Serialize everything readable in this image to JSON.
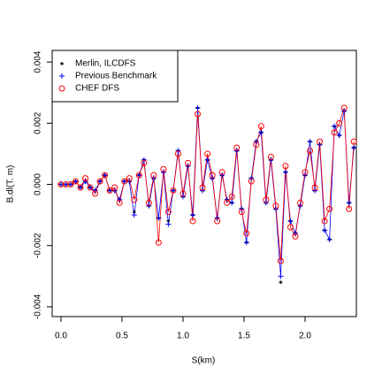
{
  "chart_data": {
    "type": "line",
    "xlabel": "S(km)",
    "ylabel": "B.dl(T. m)",
    "xlim": [
      -0.072,
      2.42
    ],
    "ylim": [
      -0.00432,
      0.00438
    ],
    "xticks": [
      {
        "value": 0,
        "label": "0.0"
      },
      {
        "value": 0.5,
        "label": "0.5"
      },
      {
        "value": 1,
        "label": "1.0"
      },
      {
        "value": 1.5,
        "label": "1.5"
      },
      {
        "value": 2,
        "label": "2.0"
      }
    ],
    "yticks": [
      {
        "value": -0.004,
        "label": "-0.004"
      },
      {
        "value": -0.002,
        "label": "-0.002"
      },
      {
        "value": 0,
        "label": "0.000"
      },
      {
        "value": 0.002,
        "label": "0.002"
      },
      {
        "value": 0.004,
        "label": "0.004"
      }
    ],
    "legend": "top-left",
    "x": [
      0,
      0.04,
      0.08,
      0.12,
      0.16,
      0.2,
      0.24,
      0.28,
      0.32,
      0.36,
      0.4,
      0.44,
      0.48,
      0.52,
      0.56,
      0.6,
      0.64,
      0.68,
      0.72,
      0.76,
      0.8,
      0.84,
      0.88,
      0.92,
      0.96,
      1.0,
      1.04,
      1.08,
      1.12,
      1.16,
      1.2,
      1.24,
      1.28,
      1.32,
      1.36,
      1.4,
      1.44,
      1.48,
      1.52,
      1.56,
      1.6,
      1.64,
      1.68,
      1.72,
      1.76,
      1.8,
      1.84,
      1.88,
      1.92,
      1.96,
      2.0,
      2.04,
      2.08,
      2.12,
      2.16,
      2.2,
      2.24,
      2.28,
      2.32,
      2.36,
      2.4
    ],
    "series": [
      {
        "name": "Merlin, ILCDFS",
        "color": "#000000",
        "marker": "star",
        "line": false,
        "values": [
          0,
          0,
          0,
          0.0001,
          -0.0001,
          0.0001,
          -0.0001,
          -0.0002,
          0.0001,
          0.0003,
          -0.0002,
          -0.0002,
          -0.0005,
          0.0001,
          0.0001,
          -0.0009,
          0.0003,
          0.0008,
          -0.0007,
          0.0002,
          -0.0011,
          0.0004,
          -0.0012,
          -0.0002,
          0.0011,
          -0.0004,
          0.0006,
          -0.001,
          0.0025,
          -0.0002,
          0.0008,
          0.0002,
          -0.0011,
          0.0003,
          -0.0005,
          -0.0006,
          0.0011,
          -0.0008,
          -0.0019,
          0.0002,
          0.0014,
          0.0017,
          -0.0006,
          0.0008,
          -0.0008,
          -0.0032,
          0.0004,
          -0.0012,
          -0.0016,
          -0.0007,
          0.0003,
          0.0014,
          -0.0002,
          0.0013,
          -0.0015,
          -0.0018,
          0.0019,
          0.0016,
          0.0024,
          -0.0006,
          0.0012
        ]
      },
      {
        "name": "Previous Benchmark",
        "color": "#0000ff",
        "marker": "plus",
        "line": true,
        "values": [
          0,
          0,
          0,
          0.0001,
          -0.0001,
          0.0001,
          -0.0001,
          -0.0002,
          0.0001,
          0.0003,
          -0.0002,
          -0.0002,
          -0.0005,
          0.0001,
          0.0001,
          -0.001,
          0.0003,
          0.0008,
          -0.0007,
          0.0002,
          -0.0011,
          0.0004,
          -0.0013,
          -0.0002,
          0.0011,
          -0.0004,
          0.0006,
          -0.001,
          0.0025,
          -0.0002,
          0.0008,
          0.0002,
          -0.0011,
          0.0003,
          -0.0005,
          -0.0006,
          0.0011,
          -0.0008,
          -0.0019,
          0.0002,
          0.0014,
          0.0017,
          -0.0006,
          0.0008,
          -0.0008,
          -0.003,
          0.0004,
          -0.0012,
          -0.0016,
          -0.0007,
          0.0003,
          0.0014,
          -0.0002,
          0.0013,
          -0.0015,
          -0.0018,
          0.0019,
          0.0016,
          0.0024,
          -0.0006,
          0.0012
        ]
      },
      {
        "name": "CHEF DFS",
        "color": "#ff0000",
        "marker": "circle",
        "line": true,
        "values": [
          0,
          0,
          0,
          0.0001,
          -0.0001,
          0.0002,
          -0.0001,
          -0.0003,
          0.0001,
          0.0003,
          -0.0002,
          -0.0001,
          -0.0006,
          0.0001,
          0.0002,
          -0.0005,
          0.0003,
          0.0007,
          -0.0006,
          0.0003,
          -0.0019,
          0.0005,
          -0.0009,
          -0.0002,
          0.001,
          -0.0003,
          0.0007,
          -0.0012,
          0.0023,
          -0.0001,
          0.001,
          0.0003,
          -0.0012,
          0.0004,
          -0.0006,
          -0.0004,
          0.0012,
          -0.0009,
          -0.0016,
          0.0001,
          0.0013,
          0.0019,
          -0.0005,
          0.0009,
          -0.0007,
          -0.0025,
          0.0006,
          -0.0014,
          -0.0017,
          -0.0006,
          0.0004,
          0.0011,
          -0.0001,
          0.0014,
          -0.0012,
          -0.0008,
          0.0017,
          0.002,
          0.0025,
          -0.0008,
          0.0014
        ]
      }
    ]
  }
}
